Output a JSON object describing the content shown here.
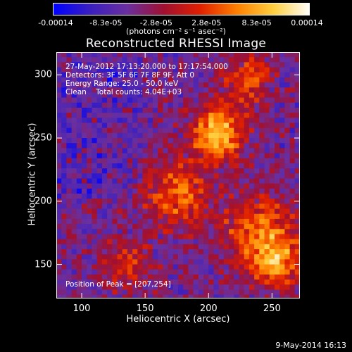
{
  "chart_data": {
    "type": "heatmap",
    "title": "Reconstructed RHESSI Image",
    "xlabel": "Heliocentric X (arcsec)",
    "ylabel": "Heliocentric Y (arcsec)",
    "xlim": [
      80,
      272
    ],
    "ylim": [
      123,
      318
    ],
    "xticks": [
      "100",
      "150",
      "200",
      "250"
    ],
    "yticks": [
      "150",
      "200",
      "250",
      "300"
    ],
    "colorbar": {
      "ticks": [
        "-0.00014",
        "-8.3e-05",
        "-2.8e-05",
        "2.8e-05",
        "8.3e-05",
        "0.00014"
      ],
      "units": "(photons cm⁻² s⁻¹ asec⁻²)",
      "colors": [
        "#0000ff",
        "#3a1fbf",
        "#6a2fa0",
        "#a01030",
        "#e02000",
        "#ff8000",
        "#ffd040",
        "#ffffff"
      ]
    },
    "annotations": [
      "27-May-2012 17:13:20.000 to 17:17:54.000",
      "Detectors: 3F 5F 6F 7F 8F 9F, Att 0",
      "Energy Range: 25.0 - 50.0 keV",
      "Clean    Total counts: 4.04E+03"
    ],
    "peak_label": "Position of Peak = [207,254]",
    "peak": [
      207,
      254
    ]
  },
  "footer_date": "9-May-2014 16:13"
}
